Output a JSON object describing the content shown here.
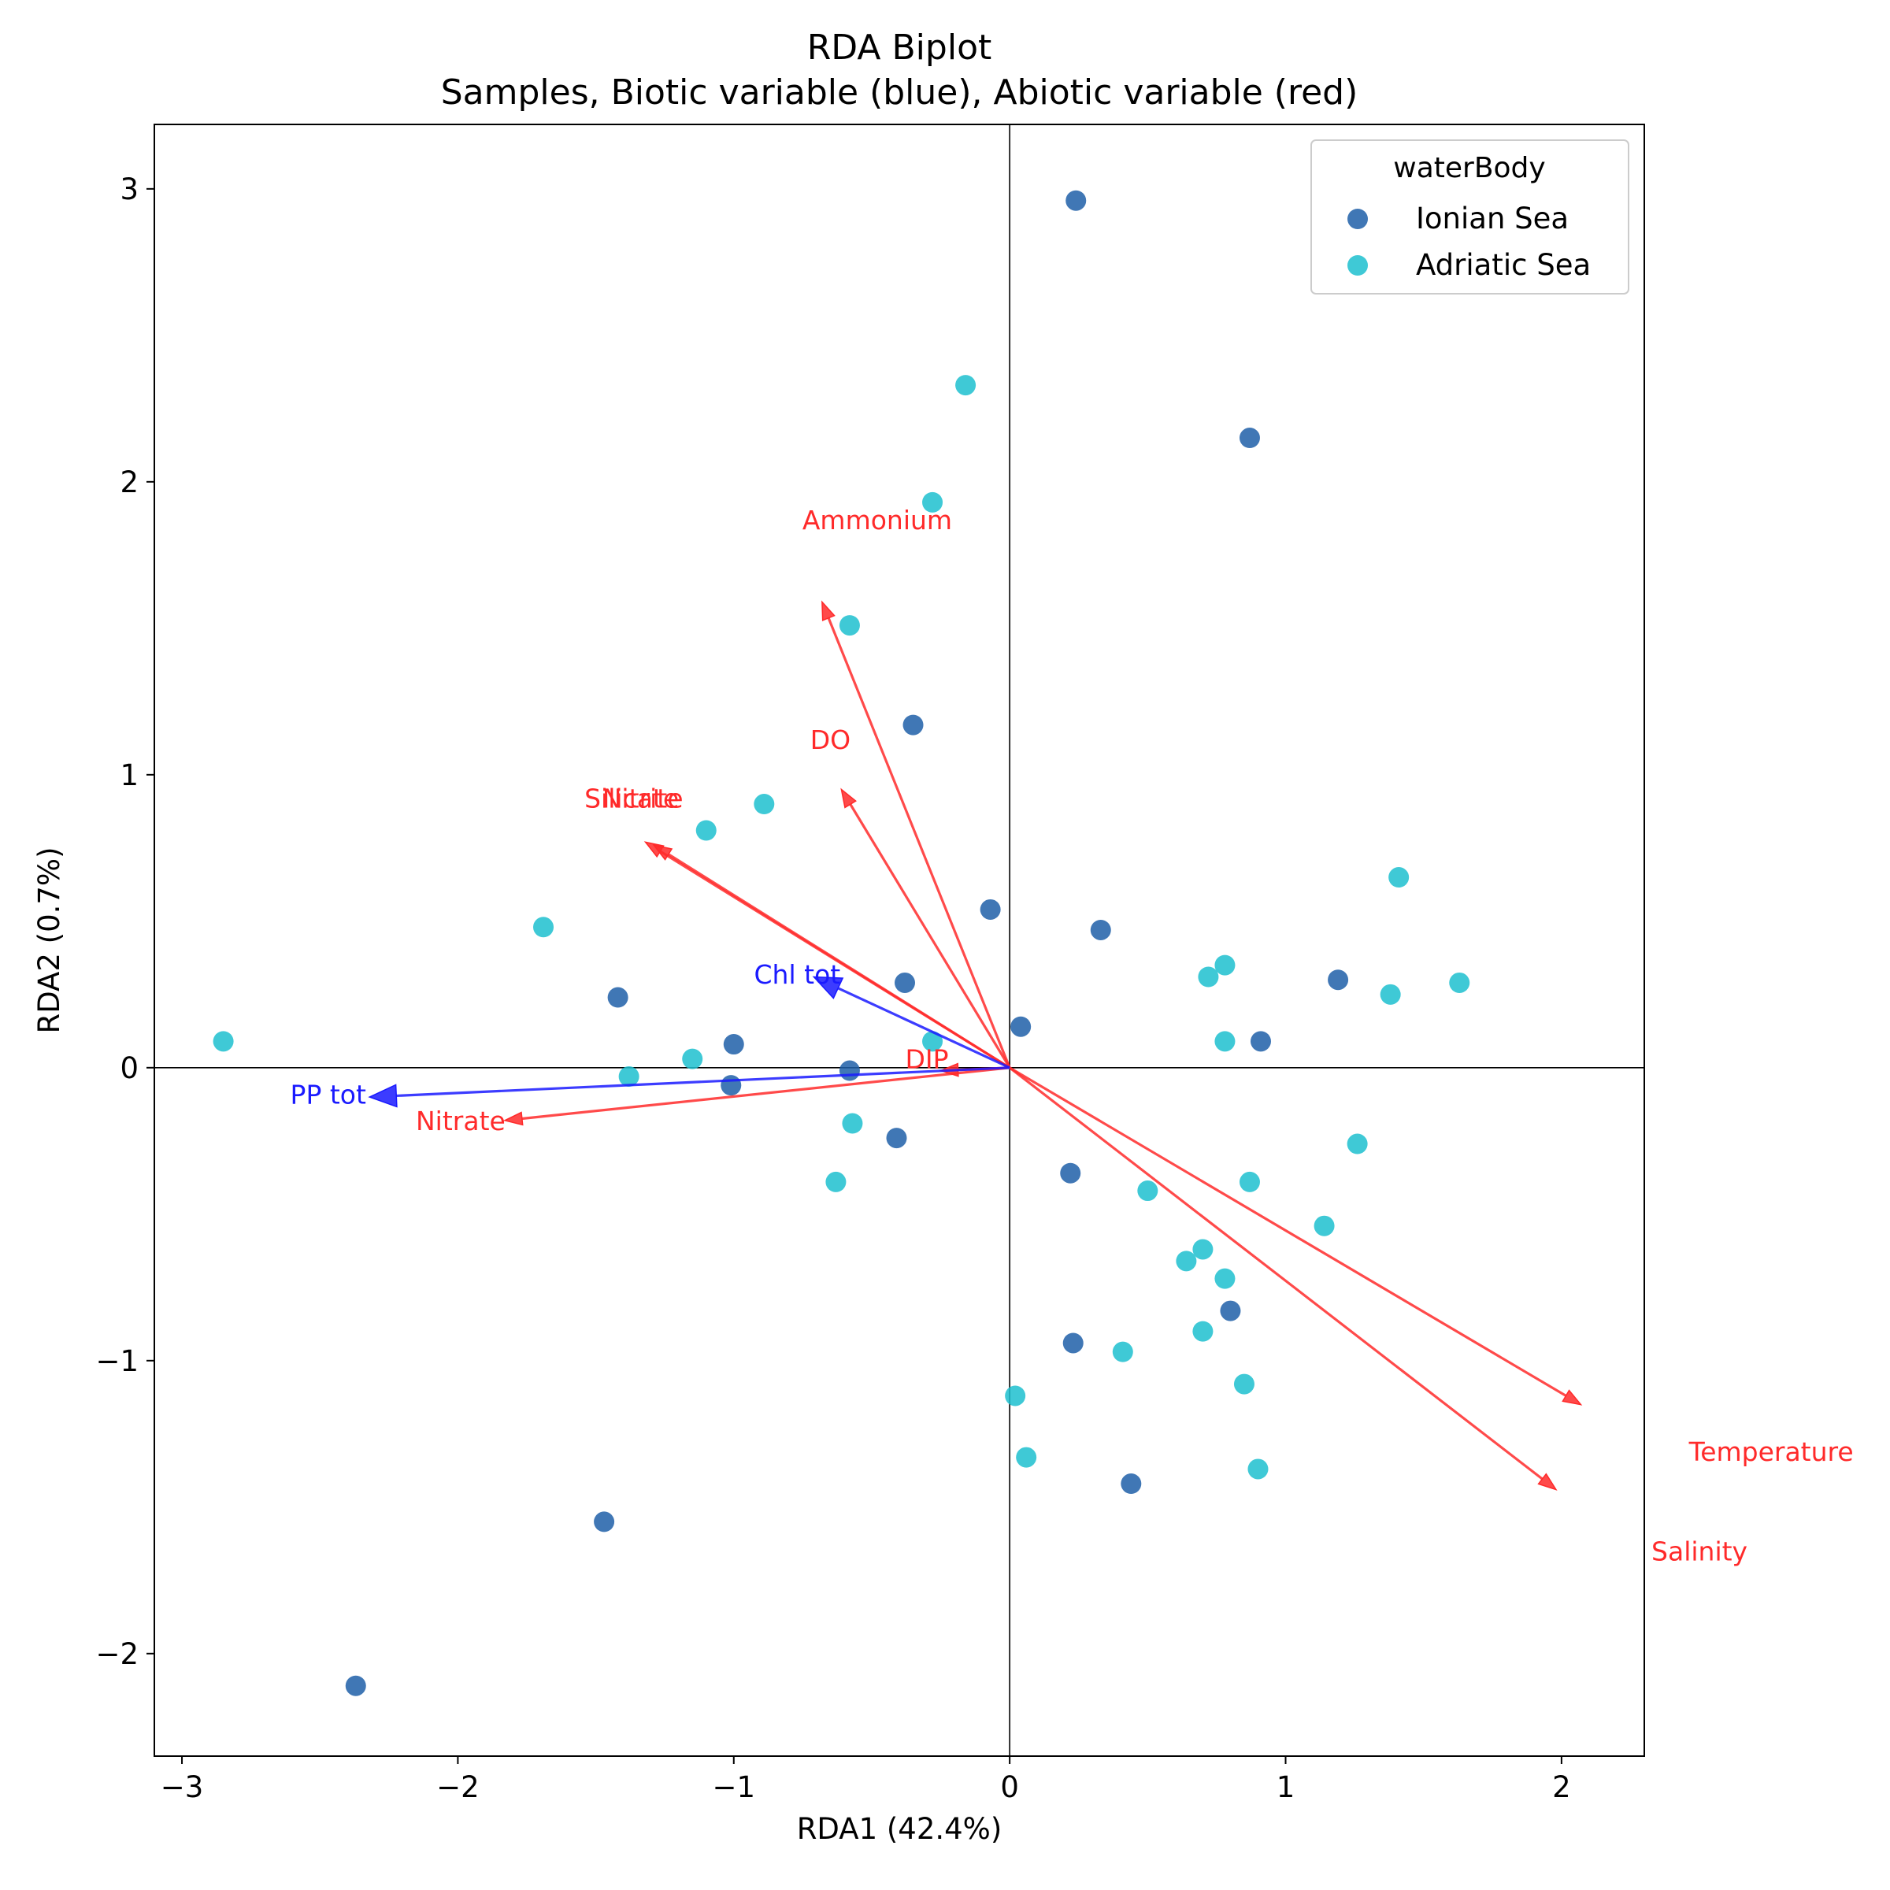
{
  "chart_data": {
    "type": "scatter",
    "title": "RDA Biplot",
    "subtitle": "Samples, Biotic variable (blue), Abiotic variable (red)",
    "xlabel": "RDA1 (42.4%)",
    "ylabel": "RDA2 (0.7%)",
    "xlim": [
      -3.1,
      2.3
    ],
    "ylim": [
      -2.35,
      3.22
    ],
    "xticks": [
      -3,
      -2,
      -1,
      0,
      1,
      2
    ],
    "xtick_labels": [
      "−3",
      "−2",
      "−1",
      "0",
      "1",
      "2"
    ],
    "yticks": [
      -2,
      -1,
      0,
      1,
      2,
      3
    ],
    "ytick_labels": [
      "−2",
      "−1",
      "0",
      "1",
      "2",
      "3"
    ],
    "grid": false,
    "legend": {
      "title": "waterBody",
      "position": "top-right",
      "entries": [
        "Ionian Sea",
        "Adriatic Sea"
      ]
    },
    "series": [
      {
        "name": "Ionian Sea",
        "color": "#1f5fa8",
        "points": [
          {
            "x": 0.24,
            "y": 2.96
          },
          {
            "x": 0.87,
            "y": 2.15
          },
          {
            "x": -0.35,
            "y": 1.17
          },
          {
            "x": -0.07,
            "y": 0.54
          },
          {
            "x": 0.33,
            "y": 0.47
          },
          {
            "x": -1.42,
            "y": 0.24
          },
          {
            "x": -0.38,
            "y": 0.29
          },
          {
            "x": 1.19,
            "y": 0.3
          },
          {
            "x": 0.04,
            "y": 0.14
          },
          {
            "x": -1.0,
            "y": 0.08
          },
          {
            "x": 0.91,
            "y": 0.09
          },
          {
            "x": -0.58,
            "y": -0.01
          },
          {
            "x": -1.01,
            "y": -0.06
          },
          {
            "x": -0.41,
            "y": -0.24
          },
          {
            "x": 0.22,
            "y": -0.36
          },
          {
            "x": 0.8,
            "y": -0.83
          },
          {
            "x": 0.23,
            "y": -0.94
          },
          {
            "x": 0.44,
            "y": -1.42
          },
          {
            "x": -1.47,
            "y": -1.55
          },
          {
            "x": -2.37,
            "y": -2.11
          }
        ]
      },
      {
        "name": "Adriatic Sea",
        "color": "#1dbfcf",
        "points": [
          {
            "x": -0.16,
            "y": 2.33
          },
          {
            "x": -0.28,
            "y": 1.93
          },
          {
            "x": -0.58,
            "y": 1.51
          },
          {
            "x": -0.89,
            "y": 0.9
          },
          {
            "x": -1.1,
            "y": 0.81
          },
          {
            "x": 1.41,
            "y": 0.65
          },
          {
            "x": -1.69,
            "y": 0.48
          },
          {
            "x": 0.78,
            "y": 0.35
          },
          {
            "x": 0.72,
            "y": 0.31
          },
          {
            "x": 1.63,
            "y": 0.29
          },
          {
            "x": 1.38,
            "y": 0.25
          },
          {
            "x": -2.85,
            "y": 0.09
          },
          {
            "x": -0.28,
            "y": 0.09
          },
          {
            "x": 0.78,
            "y": 0.09
          },
          {
            "x": -1.15,
            "y": 0.03
          },
          {
            "x": -1.38,
            "y": -0.03
          },
          {
            "x": -0.57,
            "y": -0.19
          },
          {
            "x": 1.26,
            "y": -0.26
          },
          {
            "x": -0.63,
            "y": -0.39
          },
          {
            "x": 0.87,
            "y": -0.39
          },
          {
            "x": 0.5,
            "y": -0.42
          },
          {
            "x": 1.14,
            "y": -0.54
          },
          {
            "x": 0.7,
            "y": -0.62
          },
          {
            "x": 0.64,
            "y": -0.66
          },
          {
            "x": 0.78,
            "y": -0.72
          },
          {
            "x": 0.7,
            "y": -0.9
          },
          {
            "x": 0.41,
            "y": -0.97
          },
          {
            "x": 0.85,
            "y": -1.08
          },
          {
            "x": 0.02,
            "y": -1.12
          },
          {
            "x": 0.06,
            "y": -1.33
          },
          {
            "x": 0.9,
            "y": -1.37
          }
        ]
      }
    ],
    "vectors": [
      {
        "name": "Ammonium",
        "group": "abiotic",
        "color": "#ff2a2a",
        "x": -0.68,
        "y": 1.59,
        "label_x": -0.48,
        "label_y": 1.87
      },
      {
        "name": "DO",
        "group": "abiotic",
        "color": "#ff2a2a",
        "x": -0.61,
        "y": 0.95,
        "label_x": -0.65,
        "label_y": 1.12
      },
      {
        "name": "Silicate",
        "group": "abiotic",
        "color": "#ff2a2a",
        "x": -1.32,
        "y": 0.77,
        "label_x": -1.37,
        "label_y": 0.92
      },
      {
        "name": "Nitrite",
        "group": "abiotic",
        "color": "#ff2a2a",
        "x": -1.29,
        "y": 0.76,
        "label_x": -1.33,
        "label_y": 0.92
      },
      {
        "name": "DIP",
        "group": "abiotic",
        "color": "#ff2a2a",
        "x": -0.25,
        "y": -0.01,
        "label_x": -0.3,
        "label_y": 0.03
      },
      {
        "name": "Nitrate",
        "group": "abiotic",
        "color": "#ff2a2a",
        "x": -1.83,
        "y": -0.18,
        "label_x": -1.99,
        "label_y": -0.18
      },
      {
        "name": "Temperature",
        "group": "abiotic",
        "color": "#ff2a2a",
        "x": 2.07,
        "y": -1.15,
        "label_x": 2.76,
        "label_y": -1.31
      },
      {
        "name": "Salinity",
        "group": "abiotic",
        "color": "#ff2a2a",
        "x": 1.98,
        "y": -1.44,
        "label_x": 2.5,
        "label_y": -1.65
      },
      {
        "name": "Chl tot",
        "group": "biotic",
        "color": "#1a1aff",
        "x": -0.71,
        "y": 0.31,
        "label_x": -0.77,
        "label_y": 0.32
      },
      {
        "name": "PP tot",
        "group": "biotic",
        "color": "#1a1aff",
        "x": -2.32,
        "y": -0.1,
        "label_x": -2.47,
        "label_y": -0.09
      }
    ]
  }
}
